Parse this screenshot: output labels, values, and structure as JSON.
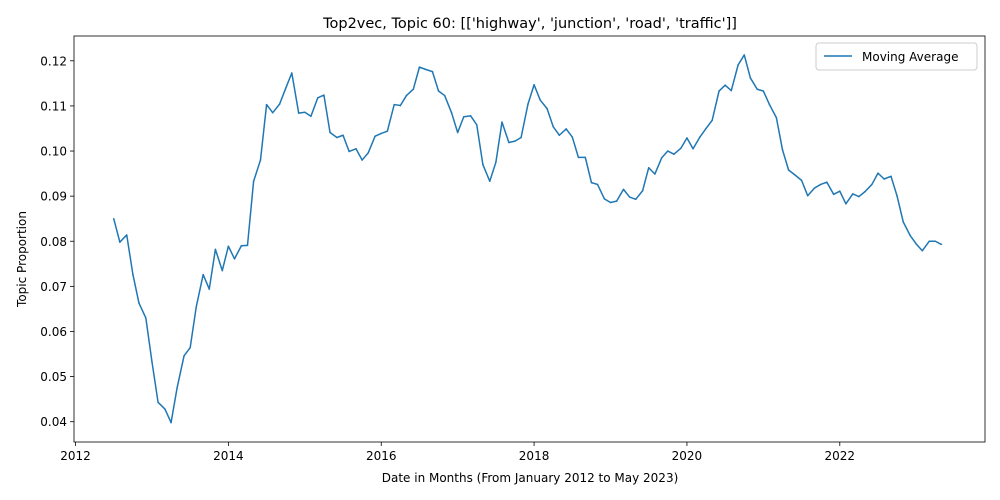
{
  "chart_data": {
    "type": "line",
    "title": "Top2vec, Topic 60: [['highway', 'junction', 'road', 'traffic']]",
    "xlabel": "Date in Months (From January 2012 to May 2023)",
    "ylabel": "Topic Proportion",
    "xlim": [
      2011.98,
      2023.9
    ],
    "ylim": [
      0.0355,
      0.1255
    ],
    "x_ticks": [
      {
        "value": 2012,
        "label": "2012"
      },
      {
        "value": 2014,
        "label": "2014"
      },
      {
        "value": 2016,
        "label": "2016"
      },
      {
        "value": 2018,
        "label": "2018"
      },
      {
        "value": 2020,
        "label": "2020"
      },
      {
        "value": 2022,
        "label": "2022"
      }
    ],
    "y_ticks": [
      {
        "value": 0.04,
        "label": "0.04"
      },
      {
        "value": 0.05,
        "label": "0.05"
      },
      {
        "value": 0.06,
        "label": "0.06"
      },
      {
        "value": 0.07,
        "label": "0.07"
      },
      {
        "value": 0.08,
        "label": "0.08"
      },
      {
        "value": 0.09,
        "label": "0.09"
      },
      {
        "value": 0.1,
        "label": "0.10"
      },
      {
        "value": 0.11,
        "label": "0.11"
      },
      {
        "value": 0.12,
        "label": "0.12"
      }
    ],
    "legend_position": "top-right",
    "grid": false,
    "series": [
      {
        "name": "Moving Average",
        "color": "#1f77b4",
        "points": [
          [
            2012.5,
            0.085
          ],
          [
            2012.58,
            0.0798
          ],
          [
            2012.67,
            0.0814
          ],
          [
            2012.75,
            0.0727
          ],
          [
            2012.83,
            0.0663
          ],
          [
            2012.92,
            0.063
          ],
          [
            2013.0,
            0.0533
          ],
          [
            2013.08,
            0.0443
          ],
          [
            2013.17,
            0.0428
          ],
          [
            2013.25,
            0.0398
          ],
          [
            2013.33,
            0.0476
          ],
          [
            2013.42,
            0.0546
          ],
          [
            2013.5,
            0.0564
          ],
          [
            2013.58,
            0.0655
          ],
          [
            2013.67,
            0.0726
          ],
          [
            2013.75,
            0.0694
          ],
          [
            2013.83,
            0.0782
          ],
          [
            2013.92,
            0.0735
          ],
          [
            2014.0,
            0.0789
          ],
          [
            2014.08,
            0.0761
          ],
          [
            2014.17,
            0.079
          ],
          [
            2014.25,
            0.0791
          ],
          [
            2014.33,
            0.0933
          ],
          [
            2014.42,
            0.098
          ],
          [
            2014.5,
            0.1103
          ],
          [
            2014.58,
            0.1085
          ],
          [
            2014.67,
            0.1104
          ],
          [
            2014.75,
            0.1139
          ],
          [
            2014.83,
            0.1173
          ],
          [
            2014.92,
            0.1084
          ],
          [
            2015.0,
            0.1086
          ],
          [
            2015.08,
            0.1077
          ],
          [
            2015.17,
            0.1118
          ],
          [
            2015.25,
            0.1124
          ],
          [
            2015.33,
            0.1041
          ],
          [
            2015.42,
            0.103
          ],
          [
            2015.5,
            0.1035
          ],
          [
            2015.58,
            0.0999
          ],
          [
            2015.67,
            0.1005
          ],
          [
            2015.75,
            0.098
          ],
          [
            2015.83,
            0.0996
          ],
          [
            2015.92,
            0.1033
          ],
          [
            2016.0,
            0.1039
          ],
          [
            2016.08,
            0.1044
          ],
          [
            2016.17,
            0.1103
          ],
          [
            2016.25,
            0.1101
          ],
          [
            2016.33,
            0.1123
          ],
          [
            2016.42,
            0.1137
          ],
          [
            2016.5,
            0.1186
          ],
          [
            2016.58,
            0.1181
          ],
          [
            2016.67,
            0.1176
          ],
          [
            2016.75,
            0.1133
          ],
          [
            2016.83,
            0.1123
          ],
          [
            2016.92,
            0.1085
          ],
          [
            2017.0,
            0.1041
          ],
          [
            2017.08,
            0.1076
          ],
          [
            2017.17,
            0.1078
          ],
          [
            2017.25,
            0.1058
          ],
          [
            2017.33,
            0.097
          ],
          [
            2017.42,
            0.0933
          ],
          [
            2017.5,
            0.0975
          ],
          [
            2017.58,
            0.1064
          ],
          [
            2017.67,
            0.1019
          ],
          [
            2017.75,
            0.1022
          ],
          [
            2017.83,
            0.103
          ],
          [
            2017.92,
            0.1104
          ],
          [
            2018.0,
            0.1147
          ],
          [
            2018.08,
            0.1113
          ],
          [
            2018.17,
            0.1094
          ],
          [
            2018.25,
            0.1054
          ],
          [
            2018.33,
            0.1035
          ],
          [
            2018.42,
            0.1049
          ],
          [
            2018.5,
            0.1031
          ],
          [
            2018.58,
            0.0986
          ],
          [
            2018.67,
            0.0986
          ],
          [
            2018.75,
            0.093
          ],
          [
            2018.83,
            0.0926
          ],
          [
            2018.92,
            0.0894
          ],
          [
            2019.0,
            0.0886
          ],
          [
            2019.08,
            0.0889
          ],
          [
            2019.17,
            0.0915
          ],
          [
            2019.25,
            0.0898
          ],
          [
            2019.33,
            0.0893
          ],
          [
            2019.42,
            0.0912
          ],
          [
            2019.5,
            0.0963
          ],
          [
            2019.58,
            0.0949
          ],
          [
            2019.67,
            0.0985
          ],
          [
            2019.75,
            0.1
          ],
          [
            2019.83,
            0.0993
          ],
          [
            2019.92,
            0.1006
          ],
          [
            2020.0,
            0.1029
          ],
          [
            2020.08,
            0.1005
          ],
          [
            2020.17,
            0.1031
          ],
          [
            2020.25,
            0.105
          ],
          [
            2020.33,
            0.1068
          ],
          [
            2020.42,
            0.1133
          ],
          [
            2020.5,
            0.1146
          ],
          [
            2020.58,
            0.1134
          ],
          [
            2020.67,
            0.1191
          ],
          [
            2020.75,
            0.1213
          ],
          [
            2020.83,
            0.1162
          ],
          [
            2020.92,
            0.1137
          ],
          [
            2021.0,
            0.1133
          ],
          [
            2021.08,
            0.1103
          ],
          [
            2021.17,
            0.1074
          ],
          [
            2021.25,
            0.1003
          ],
          [
            2021.33,
            0.0958
          ],
          [
            2021.42,
            0.0946
          ],
          [
            2021.5,
            0.0935
          ],
          [
            2021.58,
            0.0901
          ],
          [
            2021.67,
            0.0918
          ],
          [
            2021.75,
            0.0926
          ],
          [
            2021.83,
            0.0931
          ],
          [
            2021.92,
            0.0904
          ],
          [
            2022.0,
            0.0911
          ],
          [
            2022.08,
            0.0883
          ],
          [
            2022.17,
            0.0905
          ],
          [
            2022.25,
            0.0899
          ],
          [
            2022.33,
            0.091
          ],
          [
            2022.42,
            0.0926
          ],
          [
            2022.5,
            0.0951
          ],
          [
            2022.58,
            0.0938
          ],
          [
            2022.67,
            0.0944
          ],
          [
            2022.75,
            0.09
          ],
          [
            2022.83,
            0.0843
          ],
          [
            2022.92,
            0.0813
          ],
          [
            2023.0,
            0.0794
          ],
          [
            2023.08,
            0.0779
          ],
          [
            2023.17,
            0.08
          ],
          [
            2023.25,
            0.08
          ],
          [
            2023.33,
            0.0793
          ]
        ]
      }
    ]
  }
}
